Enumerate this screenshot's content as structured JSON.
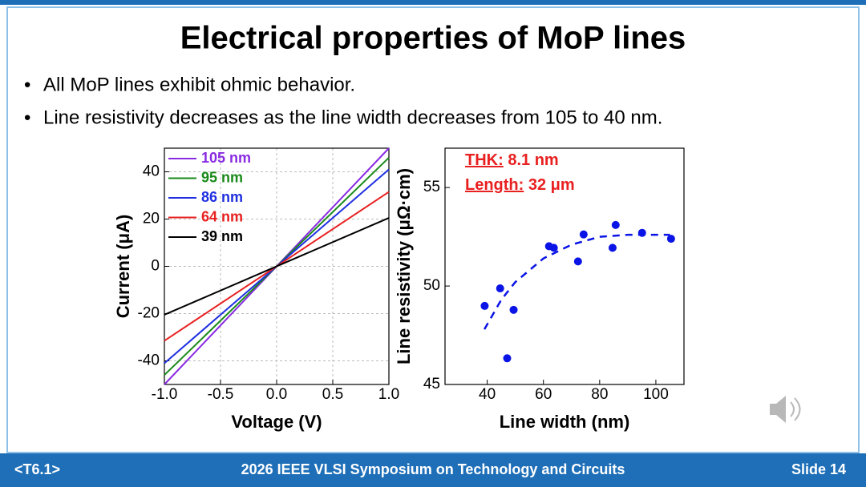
{
  "slide": {
    "title": "Electrical properties of MoP lines",
    "bullets": [
      "All MoP lines exhibit ohmic behavior.",
      "Line resistivity decreases as the line width decreases from 105 to 40 nm."
    ],
    "footer": {
      "left": "<T6.1>",
      "center": "2026 IEEE VLSI Symposium on Technology and Circuits",
      "right": "Slide 14"
    }
  },
  "chart_data": [
    {
      "type": "line",
      "x_label": "Voltage (V)",
      "y_label": "Current (μA)",
      "x": [
        -1,
        1
      ],
      "series": [
        {
          "name": "105 nm",
          "color": "#8a2be2",
          "values": [
            -50,
            50
          ]
        },
        {
          "name": "95 nm",
          "color": "#1a8a1a",
          "values": [
            -46,
            46
          ]
        },
        {
          "name": "86 nm",
          "color": "#1f2fe0",
          "values": [
            -41,
            41
          ]
        },
        {
          "name": "64 nm",
          "color": "#e82020",
          "values": [
            -31.5,
            31.5
          ]
        },
        {
          "name": "39 nm",
          "color": "#000000",
          "values": [
            -20.5,
            20.5
          ]
        }
      ],
      "xlim": [
        -1,
        1
      ],
      "ylim": [
        -50,
        50
      ],
      "xticks": [
        {
          "value": -1,
          "label": "-1.0"
        },
        -0.5,
        {
          "value": 0,
          "label": "0.0"
        },
        0.5,
        {
          "value": 1,
          "label": "1.0"
        }
      ],
      "yticks": [
        -40,
        -20,
        0,
        20,
        40
      ],
      "grid": true,
      "legend": "top-left"
    },
    {
      "type": "scatter",
      "x_label": "Line width (nm)",
      "y_label": "Line resistivity (μΩ·cm)",
      "series": [
        {
          "color": "#0a14e6",
          "marker": "dot",
          "x": [
            39.1,
            44.6,
            47.1,
            49.4,
            62,
            63.7,
            72.3,
            74.3,
            84.6,
            85.7,
            95.1,
            105.4
          ],
          "values": [
            48.99,
            49.88,
            46.33,
            48.79,
            52.02,
            51.94,
            51.25,
            52.62,
            51.94,
            53.1,
            52.7,
            52.4
          ]
        },
        {
          "color": "#0a14e6",
          "style": "dashed",
          "x": [
            39,
            45,
            50,
            60,
            70,
            80,
            90,
            100,
            105
          ],
          "values": [
            47.8,
            49.3,
            50.2,
            51.4,
            52.1,
            52.5,
            52.6,
            52.6,
            52.6
          ]
        }
      ],
      "xlim": [
        25,
        110
      ],
      "ylim": [
        45,
        57
      ],
      "xticks": [
        40,
        60,
        80,
        100
      ],
      "yticks": [
        45,
        50,
        55
      ],
      "grid": false,
      "annotations": [
        {
          "label": "THK:",
          "text": "8.1 nm",
          "color": "#e82020"
        },
        {
          "label": "Length:",
          "text": "32 μm",
          "color": "#e82020"
        }
      ]
    }
  ]
}
